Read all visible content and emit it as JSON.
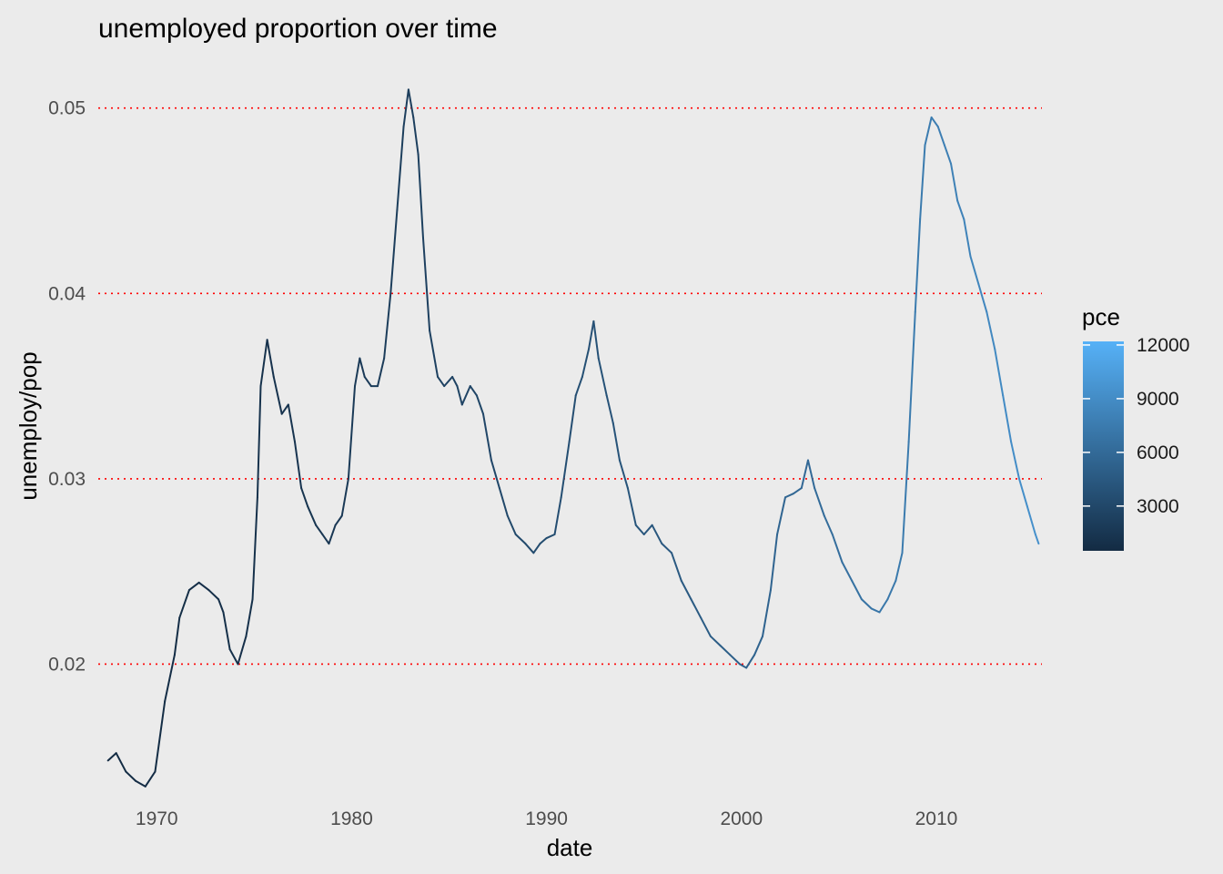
{
  "chart_data": {
    "type": "line",
    "title": "unemployed proportion over time",
    "xlabel": "date",
    "ylabel": "unemploy/pop",
    "xlim": [
      "1967-01-01",
      "2015-06-01"
    ],
    "ylim": [
      0.013,
      0.052
    ],
    "x_ticks": [
      "1970",
      "1980",
      "1990",
      "2000",
      "2010"
    ],
    "y_ticks": [
      "0.02",
      "0.03",
      "0.04",
      "0.05"
    ],
    "grid": "horizontal dotted red at y ticks",
    "grid_color": "#FF0000",
    "legend": {
      "title": "pce",
      "placement": "right",
      "type": "color gradient",
      "ticks": [
        "3000",
        "6000",
        "9000",
        "12000"
      ],
      "range": [
        500,
        12200
      ],
      "color_low": "#132B43",
      "color_high": "#56B1F7"
    },
    "series": [
      {
        "x": [
          "1967-07",
          "1967-12",
          "1968-06",
          "1968-12",
          "1969-06",
          "1969-12",
          "1970-06",
          "1970-12",
          "1971-03",
          "1971-09",
          "1972-03",
          "1972-09",
          "1973-03",
          "1973-06",
          "1973-10",
          "1974-03",
          "1974-08",
          "1974-12",
          "1975-03",
          "1975-05",
          "1975-09",
          "1976-01",
          "1976-06",
          "1976-10",
          "1977-02",
          "1977-06",
          "1977-10",
          "1978-03",
          "1978-07",
          "1978-11",
          "1979-03",
          "1979-07",
          "1979-11",
          "1980-03",
          "1980-06",
          "1980-09",
          "1981-01",
          "1981-05",
          "1981-09",
          "1982-01",
          "1982-05",
          "1982-09",
          "1982-12",
          "1983-03",
          "1983-06",
          "1983-09",
          "1984-01",
          "1984-06",
          "1984-10",
          "1985-03",
          "1985-06",
          "1985-09",
          "1986-02",
          "1986-06",
          "1986-10",
          "1987-03",
          "1987-08",
          "1988-01",
          "1988-06",
          "1988-12",
          "1989-05",
          "1989-09",
          "1990-01",
          "1990-06",
          "1990-10",
          "1991-03",
          "1991-07",
          "1991-11",
          "1992-03",
          "1992-06",
          "1992-09",
          "1993-02",
          "1993-06",
          "1993-10",
          "1994-03",
          "1994-08",
          "1995-01",
          "1995-06",
          "1995-12",
          "1996-06",
          "1996-12",
          "1997-06",
          "1997-12",
          "1998-06",
          "1998-12",
          "1999-06",
          "1999-12",
          "2000-04",
          "2000-09",
          "2001-02",
          "2001-07",
          "2001-11",
          "2002-04",
          "2002-09",
          "2003-02",
          "2003-06",
          "2003-10",
          "2004-04",
          "2004-09",
          "2005-03",
          "2005-09",
          "2006-03",
          "2006-09",
          "2007-02",
          "2007-07",
          "2007-12",
          "2008-04",
          "2008-08",
          "2008-12",
          "2009-03",
          "2009-06",
          "2009-10",
          "2010-02",
          "2010-06",
          "2010-10",
          "2011-02",
          "2011-06",
          "2011-10",
          "2012-03",
          "2012-08",
          "2013-01",
          "2013-06",
          "2013-11",
          "2014-04",
          "2014-09",
          "2015-02",
          "2015-04"
        ],
        "y": [
          0.0148,
          0.0152,
          0.0142,
          0.0137,
          0.0134,
          0.0142,
          0.018,
          0.0205,
          0.0225,
          0.024,
          0.0244,
          0.024,
          0.0235,
          0.0228,
          0.0208,
          0.02,
          0.0215,
          0.0235,
          0.029,
          0.035,
          0.0375,
          0.0355,
          0.0335,
          0.034,
          0.032,
          0.0295,
          0.0285,
          0.0275,
          0.027,
          0.0265,
          0.0275,
          0.028,
          0.03,
          0.035,
          0.0365,
          0.0355,
          0.035,
          0.035,
          0.0365,
          0.04,
          0.0445,
          0.049,
          0.051,
          0.0495,
          0.0475,
          0.043,
          0.038,
          0.0355,
          0.035,
          0.0355,
          0.035,
          0.034,
          0.035,
          0.0345,
          0.0335,
          0.031,
          0.0295,
          0.028,
          0.027,
          0.0265,
          0.026,
          0.0265,
          0.0268,
          0.027,
          0.029,
          0.032,
          0.0345,
          0.0355,
          0.037,
          0.0385,
          0.0365,
          0.0345,
          0.033,
          0.031,
          0.0295,
          0.0275,
          0.027,
          0.0275,
          0.0265,
          0.026,
          0.0245,
          0.0235,
          0.0225,
          0.0215,
          0.021,
          0.0205,
          0.02,
          0.0198,
          0.0205,
          0.0215,
          0.024,
          0.027,
          0.029,
          0.0292,
          0.0295,
          0.031,
          0.0295,
          0.028,
          0.027,
          0.0255,
          0.0245,
          0.0235,
          0.023,
          0.0228,
          0.0235,
          0.0245,
          0.026,
          0.032,
          0.039,
          0.044,
          0.048,
          0.0495,
          0.049,
          0.048,
          0.047,
          0.045,
          0.044,
          0.042,
          0.0405,
          0.039,
          0.037,
          0.0345,
          0.032,
          0.03,
          0.0285,
          0.027,
          0.0265
        ],
        "pce": [
          507,
          530,
          560,
          590,
          620,
          640,
          650,
          680,
          700,
          740,
          780,
          810,
          850,
          880,
          910,
          940,
          990,
          1030,
          1060,
          1090,
          1130,
          1170,
          1220,
          1260,
          1300,
          1350,
          1400,
          1450,
          1500,
          1560,
          1620,
          1680,
          1740,
          1800,
          1830,
          1870,
          1930,
          1980,
          2030,
          2070,
          2110,
          2150,
          2190,
          2230,
          2280,
          2340,
          2400,
          2460,
          2520,
          2580,
          2630,
          2680,
          2750,
          2800,
          2850,
          2920,
          2990,
          3060,
          3140,
          3220,
          3290,
          3350,
          3400,
          3470,
          3520,
          3560,
          3610,
          3650,
          3730,
          3780,
          3830,
          3900,
          3970,
          4030,
          4100,
          4180,
          4250,
          4320,
          4390,
          4480,
          4560,
          4640,
          4720,
          4810,
          4900,
          5000,
          5120,
          5220,
          5310,
          5390,
          5460,
          5530,
          5610,
          5700,
          5800,
          5900,
          6000,
          6150,
          6300,
          6450,
          6600,
          6750,
          6900,
          7040,
          7200,
          7320,
          7420,
          7500,
          7450,
          7450,
          7520,
          7600,
          7700,
          7800,
          7920,
          8050,
          8150,
          8250,
          8400,
          8550,
          8700,
          8850,
          9000,
          9150,
          9300,
          9350,
          9350
        ]
      }
    ]
  }
}
